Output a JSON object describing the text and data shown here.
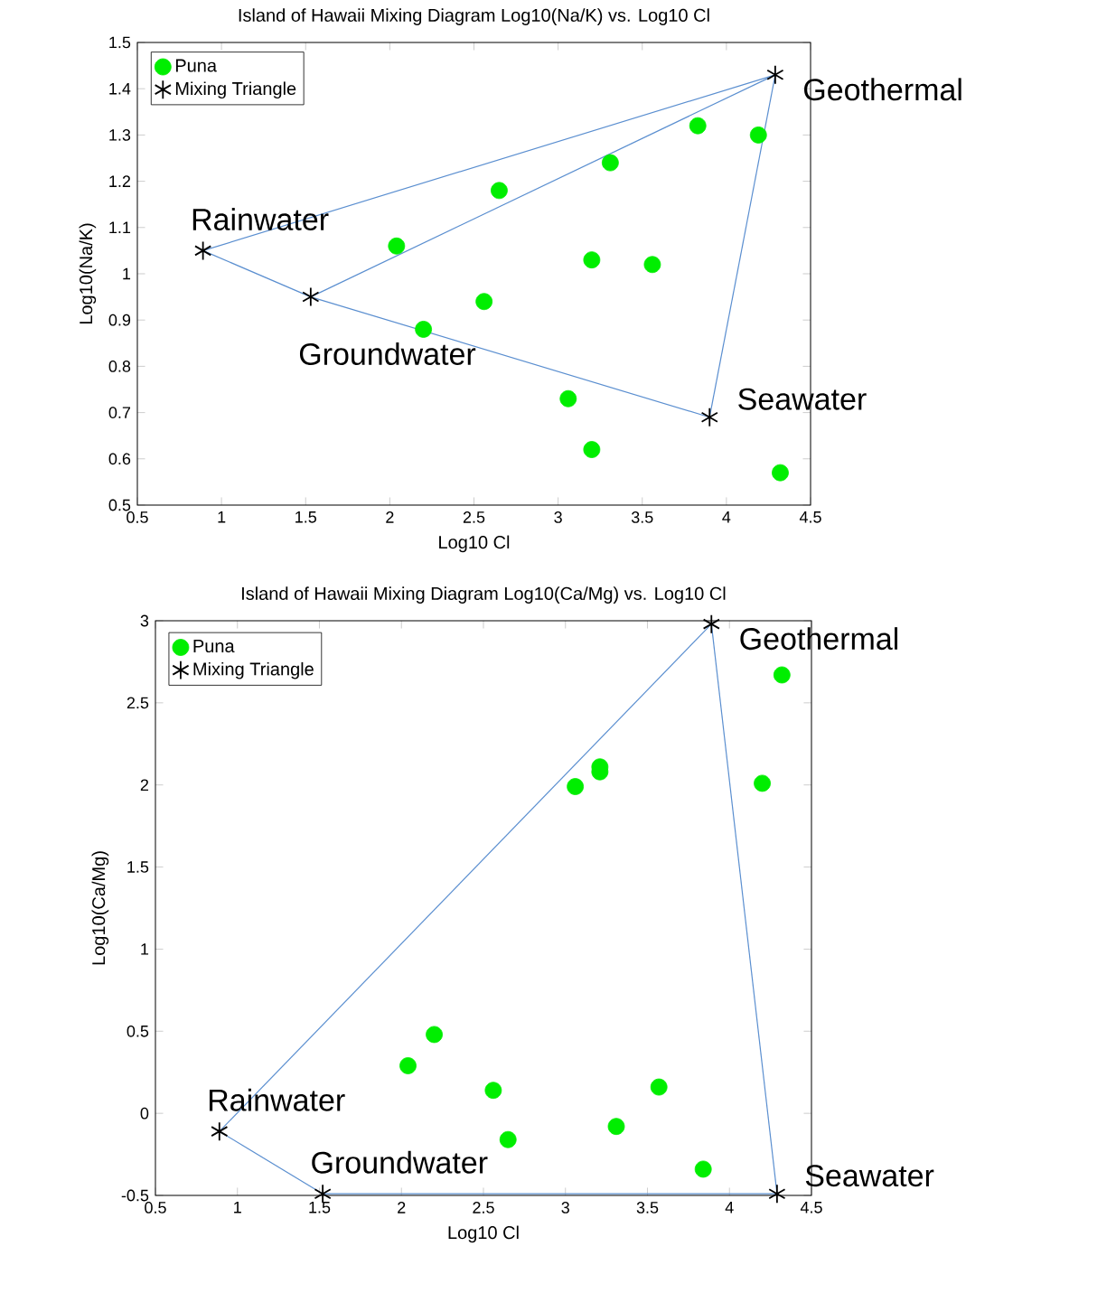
{
  "chart_data": [
    {
      "type": "scatter",
      "title": "Island of Hawaii Mixing Diagram Log10(Na/K) vs. Log10 Cl",
      "xlabel": "Log10 Cl",
      "ylabel": "Log10(Na/K)",
      "xlim": [
        0.5,
        4.5
      ],
      "ylim": [
        0.5,
        1.5
      ],
      "xticks": [
        0.5,
        1,
        1.5,
        2,
        2.5,
        3,
        3.5,
        4,
        4.5
      ],
      "yticks": [
        0.5,
        0.6,
        0.7,
        0.8,
        0.9,
        1,
        1.1,
        1.2,
        1.3,
        1.4,
        1.5
      ],
      "legend": "top left",
      "series": [
        {
          "name": "Puna",
          "type": "scatter",
          "color": "#00ee00",
          "marker": "circle",
          "x": [
            2.04,
            2.65,
            3.31,
            3.83,
            4.19,
            3.2,
            3.56,
            2.56,
            2.2,
            3.06,
            3.2,
            4.32
          ],
          "values": [
            1.06,
            1.18,
            1.24,
            1.32,
            1.3,
            1.03,
            1.02,
            0.94,
            0.88,
            0.73,
            0.62,
            0.57
          ]
        },
        {
          "name": "Mixing Triangle",
          "type": "scatter",
          "color": "#000000",
          "marker": "cross",
          "x": [
            0.89,
            1.53,
            3.9,
            4.29
          ],
          "values": [
            1.05,
            0.95,
            0.69,
            1.43
          ]
        },
        {
          "type": "line",
          "color": "#5b8fd0",
          "marker": "none",
          "x": [
            0.89,
            1.53
          ],
          "values": [
            1.05,
            0.95
          ]
        },
        {
          "type": "line",
          "color": "#5b8fd0",
          "marker": "none",
          "x": [
            1.53,
            3.9
          ],
          "values": [
            0.95,
            0.69
          ]
        },
        {
          "type": "line",
          "color": "#5b8fd0",
          "marker": "none",
          "x": [
            3.9,
            4.29
          ],
          "values": [
            0.69,
            1.43
          ]
        },
        {
          "type": "line",
          "color": "#5b8fd0",
          "marker": "none",
          "x": [
            0.89,
            4.29
          ],
          "values": [
            1.05,
            1.43
          ]
        },
        {
          "type": "line",
          "color": "#5b8fd0",
          "marker": "none",
          "x": [
            1.53,
            4.29
          ],
          "values": [
            0.95,
            1.43
          ]
        }
      ],
      "annotations": [
        {
          "text": "Rainwater",
          "x": 0.89,
          "y": 1.05
        },
        {
          "text": "Groundwater",
          "x": 1.53,
          "y": 0.95
        },
        {
          "text": "Seawater",
          "x": 3.9,
          "y": 0.69
        },
        {
          "text": "Geothermal",
          "x": 4.29,
          "y": 1.43
        }
      ]
    },
    {
      "type": "scatter",
      "title": "Island of Hawaii Mixing Diagram Log10(Ca/Mg) vs. Log10 Cl",
      "xlabel": "Log10 Cl",
      "ylabel": "Log10(Ca/Mg)",
      "xlim": [
        0.5,
        4.5
      ],
      "ylim": [
        -0.5,
        3
      ],
      "xticks": [
        0.5,
        1,
        1.5,
        2,
        2.5,
        3,
        3.5,
        4,
        4.5
      ],
      "yticks": [
        -0.5,
        0,
        0.5,
        1,
        1.5,
        2,
        2.5,
        3
      ],
      "legend": "top left",
      "series": [
        {
          "name": "Puna",
          "type": "scatter",
          "color": "#00ee00",
          "marker": "circle",
          "x": [
            2.04,
            2.2,
            2.56,
            2.65,
            3.06,
            3.21,
            3.21,
            3.31,
            3.57,
            3.84,
            4.2,
            4.32
          ],
          "values": [
            0.29,
            0.48,
            0.14,
            -0.16,
            1.99,
            2.11,
            2.08,
            -0.08,
            0.16,
            -0.34,
            2.01,
            2.67
          ]
        },
        {
          "name": "Mixing Triangle",
          "type": "scatter",
          "color": "#000000",
          "marker": "cross",
          "x": [
            0.89,
            1.52,
            4.29,
            3.89
          ],
          "values": [
            -0.11,
            -0.49,
            -0.49,
            2.98
          ]
        },
        {
          "type": "line",
          "color": "#5b8fd0",
          "marker": "none",
          "x": [
            0.89,
            1.52
          ],
          "values": [
            -0.11,
            -0.49
          ]
        },
        {
          "type": "line",
          "color": "#5b8fd0",
          "marker": "none",
          "x": [
            1.52,
            4.29
          ],
          "values": [
            -0.49,
            -0.49
          ]
        },
        {
          "type": "line",
          "color": "#5b8fd0",
          "marker": "none",
          "x": [
            4.29,
            3.89
          ],
          "values": [
            -0.49,
            2.98
          ]
        },
        {
          "type": "line",
          "color": "#5b8fd0",
          "marker": "none",
          "x": [
            0.89,
            3.89
          ],
          "values": [
            -0.11,
            2.98
          ]
        }
      ],
      "annotations": [
        {
          "text": "Rainwater",
          "x": 0.89,
          "y": -0.11
        },
        {
          "text": "Groundwater",
          "x": 1.52,
          "y": -0.49
        },
        {
          "text": "Seawater",
          "x": 4.29,
          "y": -0.49
        },
        {
          "text": "Geothermal",
          "x": 3.89,
          "y": 2.98
        }
      ]
    }
  ]
}
